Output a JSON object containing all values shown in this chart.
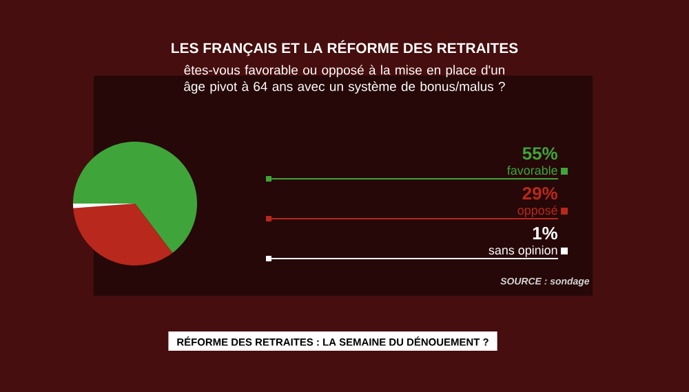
{
  "chart_data": {
    "type": "pie",
    "title": "LES FRANÇAIS ET LA RÉFORME DES RETRAITES",
    "subtitle": "êtes-vous favorable ou opposé à la mise en place d'un âge pivot à 64 ans avec un système de bonus/malus ?",
    "categories": [
      "favorable",
      "opposé",
      "sans opinion"
    ],
    "values": [
      55,
      29,
      1
    ],
    "value_labels": [
      "55%",
      "29%",
      "1%"
    ],
    "colors": [
      "#3fa53a",
      "#b8281c",
      "#ffffff"
    ],
    "legend": "right",
    "annotations": [
      "SOURCE : sondage",
      "RÉFORME DES RETRAITES : LA SEMAINE DU DÉNOUEMENT ?"
    ]
  }
}
